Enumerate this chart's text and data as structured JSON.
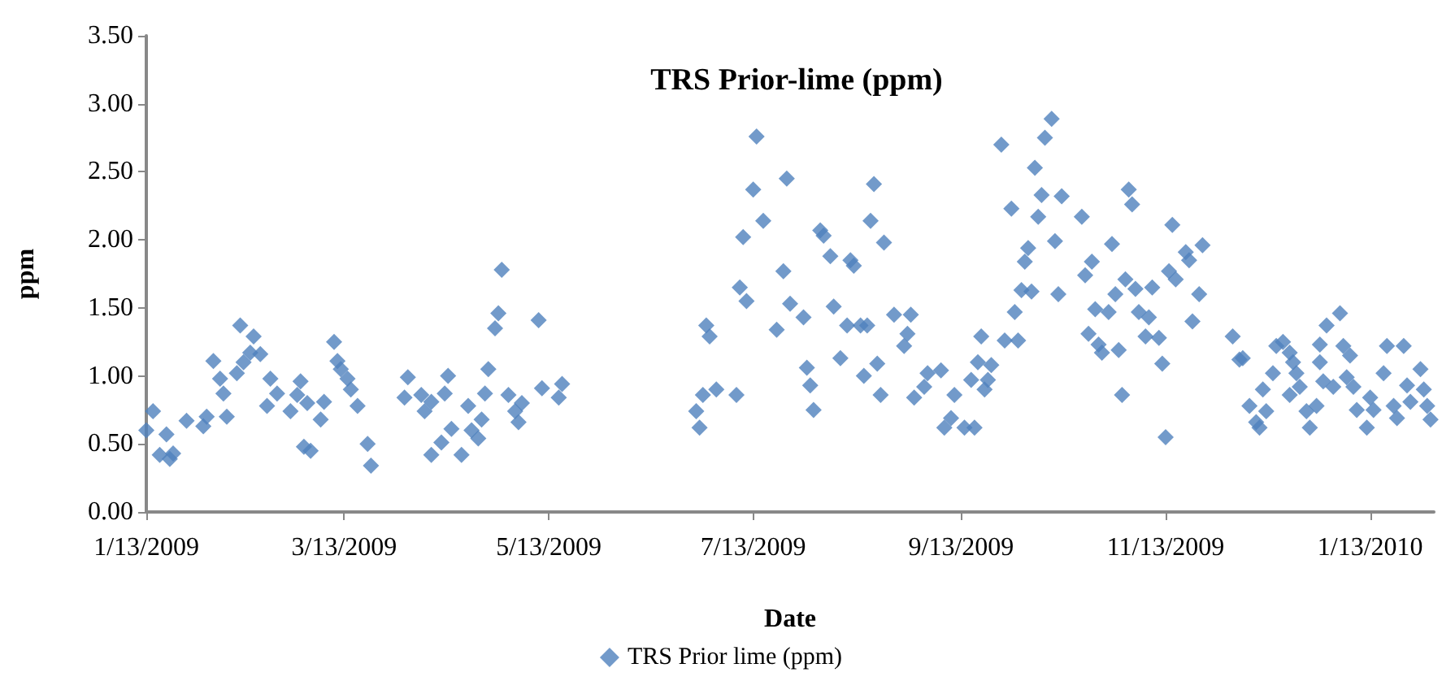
{
  "chart_data": {
    "type": "scatter",
    "title": "TRS Prior-lime (ppm)",
    "xlabel": "Date",
    "ylabel": "ppm",
    "legend": "bottom",
    "grid": false,
    "marker": "diamond",
    "xlim": [
      "2009-01-13",
      "2010-02-01"
    ],
    "xticks": [
      {
        "value": "2009-01-13",
        "label": "1/13/2009"
      },
      {
        "value": "2009-03-13",
        "label": "3/13/2009"
      },
      {
        "value": "2009-05-13",
        "label": "5/13/2009"
      },
      {
        "value": "2009-07-13",
        "label": "7/13/2009"
      },
      {
        "value": "2009-09-13",
        "label": "9/13/2009"
      },
      {
        "value": "2009-11-13",
        "label": "11/13/2009"
      },
      {
        "value": "2010-01-13",
        "label": "1/13/2010"
      }
    ],
    "ylim": [
      0,
      3.5
    ],
    "yticks": [
      {
        "value": 0,
        "label": "0.00"
      },
      {
        "value": 0.5,
        "label": "0.50"
      },
      {
        "value": 1,
        "label": "1.00"
      },
      {
        "value": 1.5,
        "label": "1.50"
      },
      {
        "value": 2,
        "label": "2.00"
      },
      {
        "value": 2.5,
        "label": "2.50"
      },
      {
        "value": 3,
        "label": "3.00"
      },
      {
        "value": 3.5,
        "label": "3.50"
      }
    ],
    "x": [
      "2009-01-13",
      "2009-01-15",
      "2009-01-17",
      "2009-01-19",
      "2009-01-20",
      "2009-01-21",
      "2009-01-25",
      "2009-01-30",
      "2009-01-31",
      "2009-02-02",
      "2009-02-04",
      "2009-02-05",
      "2009-02-06",
      "2009-02-09",
      "2009-02-10",
      "2009-02-11",
      "2009-02-13",
      "2009-02-14",
      "2009-02-16",
      "2009-02-18",
      "2009-02-19",
      "2009-02-21",
      "2009-02-25",
      "2009-02-27",
      "2009-02-28",
      "2009-03-01",
      "2009-03-02",
      "2009-03-03",
      "2009-03-06",
      "2009-03-07",
      "2009-03-10",
      "2009-03-11",
      "2009-03-12",
      "2009-03-14",
      "2009-03-15",
      "2009-03-17",
      "2009-03-20",
      "2009-03-21",
      "2009-03-31",
      "2009-04-01",
      "2009-04-05",
      "2009-04-06",
      "2009-04-08",
      "2009-04-08",
      "2009-04-11",
      "2009-04-12",
      "2009-04-13",
      "2009-04-14",
      "2009-04-17",
      "2009-04-19",
      "2009-04-20",
      "2009-04-22",
      "2009-04-23",
      "2009-04-24",
      "2009-04-25",
      "2009-04-27",
      "2009-04-28",
      "2009-04-29",
      "2009-05-01",
      "2009-05-03",
      "2009-05-04",
      "2009-05-05",
      "2009-05-10",
      "2009-05-11",
      "2009-05-16",
      "2009-05-17",
      "2009-06-26",
      "2009-06-27",
      "2009-06-28",
      "2009-06-29",
      "2009-06-30",
      "2009-07-02",
      "2009-07-08",
      "2009-07-09",
      "2009-07-10",
      "2009-07-11",
      "2009-07-13",
      "2009-07-14",
      "2009-07-16",
      "2009-07-20",
      "2009-07-22",
      "2009-07-23",
      "2009-07-24",
      "2009-07-28",
      "2009-07-29",
      "2009-07-30",
      "2009-07-31",
      "2009-08-02",
      "2009-08-03",
      "2009-08-05",
      "2009-08-06",
      "2009-08-08",
      "2009-08-10",
      "2009-08-11",
      "2009-08-12",
      "2009-08-14",
      "2009-08-15",
      "2009-08-16",
      "2009-08-17",
      "2009-08-18",
      "2009-08-19",
      "2009-08-20",
      "2009-08-21",
      "2009-08-24",
      "2009-08-27",
      "2009-08-28",
      "2009-08-29",
      "2009-08-30",
      "2009-09-02",
      "2009-09-03",
      "2009-09-07",
      "2009-09-08",
      "2009-09-10",
      "2009-09-11",
      "2009-09-14",
      "2009-09-16",
      "2009-09-17",
      "2009-09-18",
      "2009-09-19",
      "2009-09-20",
      "2009-09-21",
      "2009-09-22",
      "2009-09-25",
      "2009-09-26",
      "2009-09-28",
      "2009-09-29",
      "2009-09-30",
      "2009-10-01",
      "2009-10-02",
      "2009-10-03",
      "2009-10-04",
      "2009-10-05",
      "2009-10-06",
      "2009-10-07",
      "2009-10-08",
      "2009-10-10",
      "2009-10-11",
      "2009-10-12",
      "2009-10-13",
      "2009-10-19",
      "2009-10-20",
      "2009-10-21",
      "2009-10-22",
      "2009-10-23",
      "2009-10-24",
      "2009-10-25",
      "2009-10-27",
      "2009-10-28",
      "2009-10-29",
      "2009-10-30",
      "2009-10-31",
      "2009-11-01",
      "2009-11-02",
      "2009-11-03",
      "2009-11-04",
      "2009-11-05",
      "2009-11-07",
      "2009-11-08",
      "2009-11-09",
      "2009-11-11",
      "2009-11-12",
      "2009-11-13",
      "2009-11-14",
      "2009-11-15",
      "2009-11-16",
      "2009-11-19",
      "2009-11-20",
      "2009-11-21",
      "2009-11-23",
      "2009-11-24",
      "2009-12-03",
      "2009-12-05",
      "2009-12-06",
      "2009-12-08",
      "2009-12-10",
      "2009-12-11",
      "2009-12-12",
      "2009-12-13",
      "2009-12-15",
      "2009-12-16",
      "2009-12-18",
      "2009-12-20",
      "2009-12-20",
      "2009-12-21",
      "2009-12-22",
      "2009-12-23",
      "2009-12-25",
      "2009-12-26",
      "2009-12-28",
      "2009-12-29",
      "2009-12-29",
      "2009-12-30",
      "2009-12-31",
      "2010-01-02",
      "2010-01-04",
      "2010-01-05",
      "2010-01-06",
      "2010-01-07",
      "2010-01-08",
      "2010-01-09",
      "2010-01-12",
      "2010-01-13",
      "2010-01-14",
      "2010-01-17",
      "2010-01-18",
      "2010-01-20",
      "2010-01-21",
      "2010-01-23",
      "2010-01-24",
      "2010-01-25",
      "2010-01-28",
      "2010-01-29",
      "2010-01-30",
      "2010-01-31"
    ],
    "series": [
      {
        "name": "TRS Prior lime (ppm)",
        "color": "#4f81bd",
        "values": [
          0.6,
          0.74,
          0.42,
          0.57,
          0.39,
          0.43,
          0.67,
          0.63,
          0.7,
          1.11,
          0.98,
          0.87,
          0.7,
          1.02,
          1.37,
          1.1,
          1.17,
          1.29,
          1.16,
          0.78,
          0.98,
          0.87,
          0.74,
          0.86,
          0.96,
          0.48,
          0.8,
          0.45,
          0.68,
          0.81,
          1.25,
          1.11,
          1.05,
          0.98,
          0.9,
          0.78,
          0.5,
          0.34,
          0.84,
          0.99,
          0.86,
          0.74,
          0.42,
          0.81,
          0.51,
          0.87,
          1.0,
          0.61,
          0.42,
          0.78,
          0.6,
          0.54,
          0.68,
          0.87,
          1.05,
          1.35,
          1.46,
          1.78,
          0.86,
          0.74,
          0.66,
          0.8,
          1.41,
          0.91,
          0.84,
          0.94,
          0.74,
          0.62,
          0.86,
          1.37,
          1.29,
          0.9,
          0.86,
          1.65,
          2.02,
          1.55,
          2.37,
          2.76,
          2.14,
          1.34,
          1.77,
          2.45,
          1.53,
          1.43,
          1.06,
          0.93,
          0.75,
          2.07,
          2.03,
          1.88,
          1.51,
          1.13,
          1.37,
          1.85,
          1.81,
          1.37,
          1.0,
          1.37,
          2.14,
          2.41,
          1.09,
          0.86,
          1.98,
          1.45,
          1.22,
          1.31,
          1.45,
          0.84,
          0.92,
          1.02,
          1.04,
          0.62,
          0.69,
          0.86,
          0.62,
          0.97,
          0.62,
          1.1,
          1.29,
          0.9,
          0.97,
          1.08,
          2.7,
          1.26,
          2.23,
          1.47,
          1.26,
          1.63,
          1.84,
          1.94,
          1.62,
          2.53,
          2.17,
          2.33,
          2.75,
          2.89,
          1.99,
          1.6,
          2.32,
          2.17,
          1.74,
          1.31,
          1.84,
          1.49,
          1.23,
          1.17,
          1.47,
          1.97,
          1.6,
          1.19,
          0.86,
          1.71,
          2.37,
          2.26,
          1.64,
          1.47,
          1.29,
          1.43,
          1.65,
          1.28,
          1.09,
          0.55,
          1.77,
          2.11,
          1.71,
          1.91,
          1.85,
          1.4,
          1.6,
          1.96,
          1.29,
          1.12,
          1.13,
          0.78,
          0.66,
          0.62,
          0.9,
          0.74,
          1.02,
          1.22,
          1.25,
          1.17,
          0.86,
          1.1,
          1.02,
          0.92,
          0.74,
          0.62,
          0.78,
          1.1,
          1.23,
          0.96,
          1.37,
          0.92,
          1.46,
          1.22,
          0.99,
          1.15,
          0.92,
          0.75,
          0.62,
          0.84,
          0.75,
          1.02,
          1.22,
          0.78,
          0.69,
          1.22,
          0.93,
          0.81,
          1.05,
          0.9,
          0.78,
          0.68
        ]
      }
    ]
  }
}
